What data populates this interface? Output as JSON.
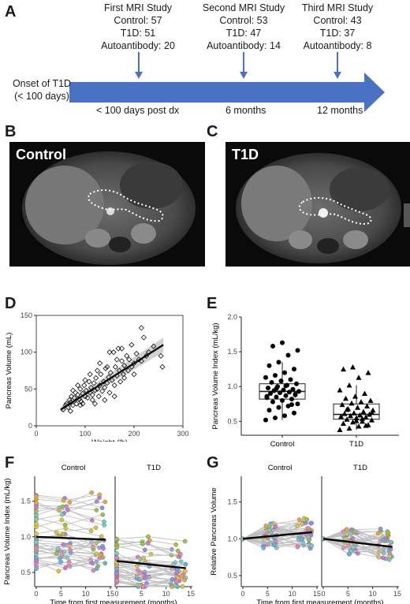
{
  "panels": {
    "a": "A",
    "b": "B",
    "c": "C",
    "d": "D",
    "e": "E",
    "f": "F",
    "g": "G"
  },
  "timeline": {
    "onset": [
      "Onset of T1D",
      "(< 100 days)"
    ],
    "studies": [
      {
        "title": "First MRI Study",
        "lines": [
          "Control: 57",
          "T1D: 51",
          "Autoantibody: 20"
        ]
      },
      {
        "title": "Second MRI Study",
        "lines": [
          "Control: 53",
          "T1D: 47",
          "Autoantibody: 14"
        ]
      },
      {
        "title": "Third MRI Study",
        "lines": [
          "Control: 43",
          "T1D: 37",
          "Autoantibody: 8"
        ]
      }
    ],
    "times": [
      "< 100 days post dx",
      "6 months",
      "12 months"
    ],
    "arrow_color": "#4a72c4"
  },
  "mri": {
    "control_label": "Control",
    "t1d_label": "T1D"
  },
  "chart_data": [
    {
      "panel": "D",
      "type": "scatter",
      "xlabel": "Weight (lb)",
      "ylabel": "Pancreas Volume (mL)",
      "xlim": [
        0,
        300
      ],
      "ylim": [
        0,
        150
      ],
      "xticks": [
        0,
        100,
        200,
        300
      ],
      "yticks": [
        0,
        50,
        100,
        150
      ],
      "fit": {
        "x0": 50,
        "y0": 22,
        "x1": 260,
        "y1": 110
      },
      "points": [
        [
          55,
          22
        ],
        [
          60,
          28
        ],
        [
          62,
          30
        ],
        [
          65,
          25
        ],
        [
          68,
          35
        ],
        [
          70,
          32
        ],
        [
          72,
          40
        ],
        [
          75,
          28
        ],
        [
          78,
          38
        ],
        [
          80,
          45
        ],
        [
          82,
          30
        ],
        [
          85,
          42
        ],
        [
          88,
          36
        ],
        [
          90,
          50
        ],
        [
          92,
          33
        ],
        [
          95,
          44
        ],
        [
          98,
          55
        ],
        [
          100,
          40
        ],
        [
          102,
          48
        ],
        [
          105,
          38
        ],
        [
          108,
          60
        ],
        [
          110,
          45
        ],
        [
          112,
          52
        ],
        [
          115,
          42
        ],
        [
          118,
          58
        ],
        [
          120,
          48
        ],
        [
          122,
          65
        ],
        [
          125,
          50
        ],
        [
          128,
          40
        ],
        [
          130,
          55
        ],
        [
          132,
          70
        ],
        [
          135,
          47
        ],
        [
          138,
          60
        ],
        [
          140,
          52
        ],
        [
          142,
          78
        ],
        [
          145,
          58
        ],
        [
          148,
          66
        ],
        [
          150,
          45
        ],
        [
          152,
          72
        ],
        [
          155,
          62
        ],
        [
          158,
          100
        ],
        [
          160,
          55
        ],
        [
          162,
          80
        ],
        [
          165,
          68
        ],
        [
          168,
          105
        ],
        [
          170,
          75
        ],
        [
          172,
          60
        ],
        [
          175,
          88
        ],
        [
          178,
          70
        ],
        [
          180,
          82
        ],
        [
          185,
          95
        ],
        [
          188,
          75
        ],
        [
          190,
          90
        ],
        [
          195,
          80
        ],
        [
          200,
          85
        ],
        [
          205,
          98
        ],
        [
          210,
          90
        ],
        [
          215,
          88
        ],
        [
          220,
          120
        ],
        [
          225,
          95
        ],
        [
          230,
          100
        ],
        [
          240,
          108
        ],
        [
          255,
          95
        ],
        [
          258,
          80
        ],
        [
          120,
          30
        ],
        [
          100,
          62
        ],
        [
          90,
          28
        ],
        [
          140,
          35
        ],
        [
          150,
          100
        ],
        [
          160,
          40
        ],
        [
          130,
          85
        ],
        [
          110,
          70
        ],
        [
          175,
          105
        ],
        [
          195,
          110
        ],
        [
          215,
          133
        ],
        [
          200,
          70
        ],
        [
          180,
          65
        ],
        [
          165,
          90
        ],
        [
          145,
          80
        ],
        [
          125,
          75
        ],
        [
          85,
          55
        ],
        [
          75,
          48
        ],
        [
          70,
          20
        ],
        [
          95,
          30
        ],
        [
          115,
          35
        ]
      ]
    },
    {
      "panel": "E",
      "type": "box",
      "categories": [
        "Control",
        "T1D"
      ],
      "ylabel": "Pancreas Volume Index (mL/kg)",
      "ylim": [
        0.3,
        2.0
      ],
      "yticks": [
        0.5,
        1.0,
        1.5,
        2.0
      ],
      "boxes": [
        {
          "name": "Control",
          "q1": 0.82,
          "median": 0.93,
          "q3": 1.04,
          "whisker_low": 0.52,
          "whisker_high": 1.35,
          "points": [
            0.52,
            0.55,
            0.58,
            0.62,
            0.66,
            0.7,
            0.72,
            0.75,
            0.78,
            0.8,
            0.82,
            0.84,
            0.85,
            0.87,
            0.88,
            0.9,
            0.91,
            0.92,
            0.93,
            0.94,
            0.95,
            0.96,
            0.98,
            1.0,
            1.02,
            1.04,
            1.06,
            1.08,
            1.1,
            1.13,
            1.16,
            1.2,
            1.25,
            1.3,
            1.35,
            1.45,
            1.52,
            1.58,
            1.63,
            0.74,
            0.86,
            0.97,
            1.01,
            0.89
          ]
        },
        {
          "name": "T1D",
          "q1": 0.53,
          "median": 0.6,
          "q3": 0.75,
          "whisker_low": 0.38,
          "whisker_high": 1.02,
          "points": [
            0.38,
            0.4,
            0.43,
            0.45,
            0.47,
            0.49,
            0.5,
            0.52,
            0.53,
            0.55,
            0.56,
            0.57,
            0.58,
            0.59,
            0.6,
            0.61,
            0.62,
            0.64,
            0.66,
            0.68,
            0.7,
            0.72,
            0.74,
            0.76,
            0.78,
            0.8,
            0.83,
            0.86,
            0.9,
            0.95,
            1.02,
            1.13,
            1.2,
            1.25,
            1.28,
            0.54,
            0.63,
            0.67,
            0.51,
            0.44
          ]
        }
      ]
    },
    {
      "panel": "F",
      "type": "line",
      "ylabel": "Pancreas Volume Index (mL/kg)",
      "xlabel": "Time from first measurement (months)",
      "facets": [
        "Control",
        "T1D"
      ],
      "xlim": [
        0,
        15
      ],
      "ylim": [
        0.3,
        1.85
      ],
      "xticks": [
        0,
        5,
        10,
        15
      ],
      "yticks": [
        0.5,
        1.0,
        1.5
      ],
      "trends": [
        {
          "y0": 1.0,
          "y1": 0.96
        },
        {
          "y0": 0.66,
          "y1": 0.56
        }
      ],
      "starts": [
        [
          0.55,
          1.65
        ],
        [
          0.35,
          1.0
        ]
      ]
    },
    {
      "panel": "G",
      "type": "line",
      "ylabel": "Relative Pancreas Volume",
      "xlabel": "Time from first measurement (months)",
      "facets": [
        "Control",
        "T1D"
      ],
      "xlim": [
        0,
        15
      ],
      "ylim": [
        0.35,
        1.85
      ],
      "xticks": [
        0,
        5,
        10,
        15
      ],
      "yticks": [
        0.5,
        1.0,
        1.5
      ],
      "trends": [
        {
          "y0": 1.0,
          "y1": 1.09
        },
        {
          "y0": 1.0,
          "y1": 0.89
        }
      ],
      "starts": [
        [
          1.0,
          1.0
        ],
        [
          1.0,
          1.0
        ]
      ]
    }
  ],
  "palette": [
    "#e8a838",
    "#9ac43e",
    "#5bb6e8",
    "#c678d8",
    "#f07fb0",
    "#6fd0c0",
    "#d9c43a",
    "#8f8fe8"
  ]
}
